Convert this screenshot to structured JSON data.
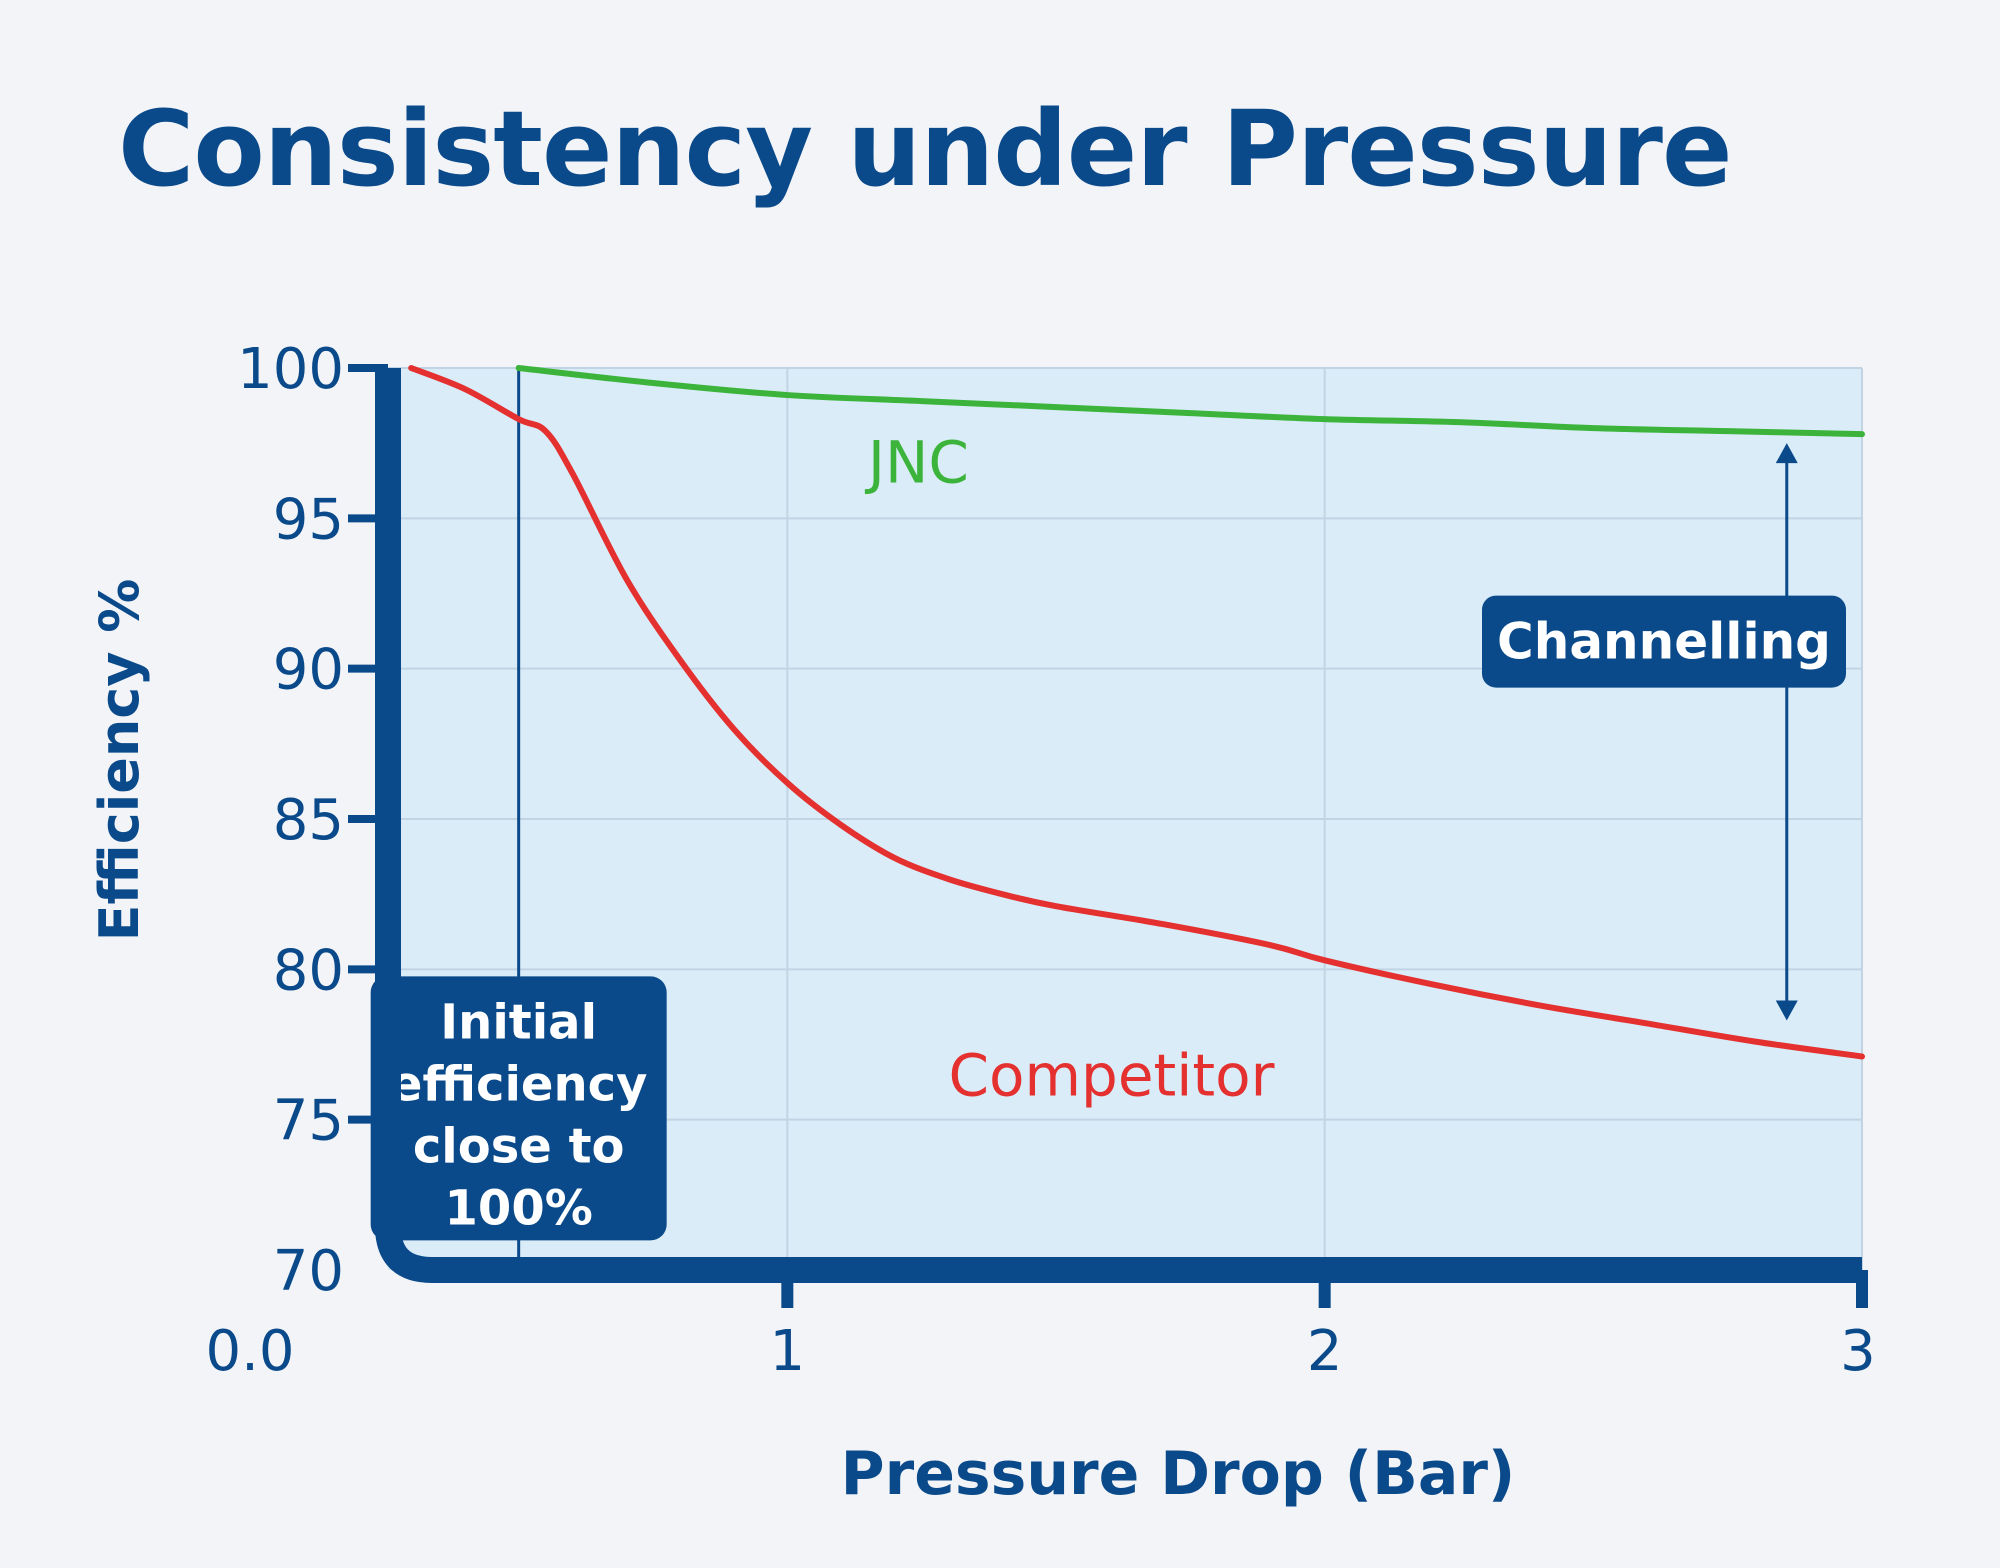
{
  "chart_data": {
    "type": "line",
    "title": "Consistency under Pressure",
    "xlabel": "Pressure Drop (Bar)",
    "ylabel": "Efficiency %",
    "xlim": [
      0,
      3
    ],
    "ylim": [
      70,
      100
    ],
    "x_ticks": [
      0,
      1,
      2,
      3
    ],
    "x_tick_labels": [
      "0.0",
      "1",
      "2",
      "3"
    ],
    "y_ticks": [
      70,
      75,
      80,
      85,
      90,
      95,
      100
    ],
    "y_tick_labels": [
      "70",
      "75",
      "80",
      "85",
      "90",
      "95",
      "100"
    ],
    "grid": true,
    "series": [
      {
        "name": "JNC",
        "color": "#3cb43c",
        "label_pos": [
          1.15,
          96.2
        ],
        "points": [
          [
            0.5,
            100
          ],
          [
            0.75,
            99.5
          ],
          [
            1.0,
            99.1
          ],
          [
            1.25,
            98.9
          ],
          [
            1.5,
            98.7
          ],
          [
            1.75,
            98.5
          ],
          [
            2.0,
            98.3
          ],
          [
            2.25,
            98.2
          ],
          [
            2.5,
            98.0
          ],
          [
            2.75,
            97.9
          ],
          [
            3.0,
            97.8
          ]
        ]
      },
      {
        "name": "Competitor",
        "color": "#e53030",
        "label_pos": [
          1.3,
          75.8
        ],
        "points": [
          [
            0.3,
            100
          ],
          [
            0.4,
            99.3
          ],
          [
            0.5,
            98.3
          ],
          [
            0.55,
            97.9
          ],
          [
            0.6,
            96.5
          ],
          [
            0.7,
            93.0
          ],
          [
            0.8,
            90.3
          ],
          [
            0.9,
            88.0
          ],
          [
            1.0,
            86.2
          ],
          [
            1.1,
            84.8
          ],
          [
            1.2,
            83.7
          ],
          [
            1.3,
            83.0
          ],
          [
            1.4,
            82.5
          ],
          [
            1.5,
            82.1
          ],
          [
            1.7,
            81.5
          ],
          [
            1.9,
            80.8
          ],
          [
            2.0,
            80.3
          ],
          [
            2.2,
            79.5
          ],
          [
            2.4,
            78.8
          ],
          [
            2.6,
            78.2
          ],
          [
            2.8,
            77.6
          ],
          [
            3.0,
            77.1
          ]
        ]
      }
    ],
    "annotations": {
      "initial_line_x": 0.5,
      "initial_text": [
        "Initial",
        "efficiency",
        "close to",
        "100%"
      ],
      "initial_box": [
        0.5,
        79.5
      ],
      "channelling_text": "Channelling",
      "channelling_x": 2.86,
      "channelling_range": [
        78.3,
        97.5
      ],
      "channelling_box_y": 90.9
    }
  },
  "colors": {
    "axis": "#0b4a8a",
    "plot_bg": "#d9ecf8",
    "grid": "#c2d4e4",
    "annotation_bg": "#0b4a8a",
    "annotation_text": "#ffffff"
  }
}
